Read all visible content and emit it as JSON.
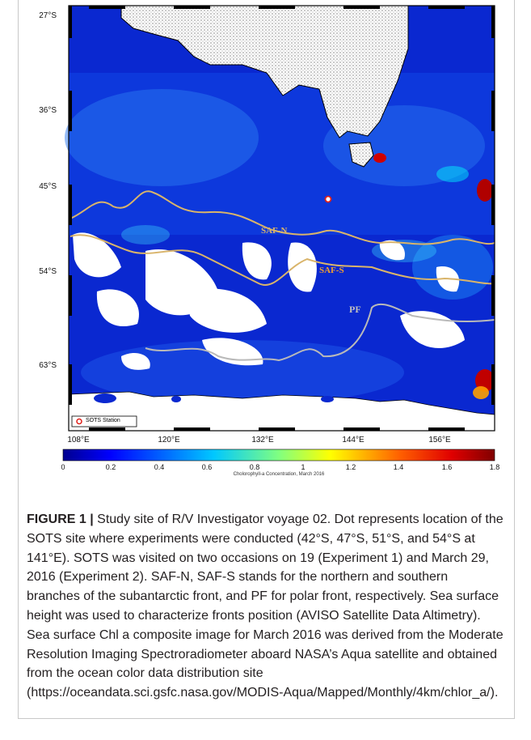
{
  "figure": {
    "lat_labels": [
      "27°S",
      "36°S",
      "45°S",
      "54°S",
      "63°S"
    ],
    "lon_labels": [
      "108°E",
      "120°E",
      "132°E",
      "144°E",
      "156°E"
    ],
    "front_labels": {
      "saf_n": "SAF-N",
      "saf_s": "SAF-S",
      "pf": "PF"
    },
    "legend_label": "SOTS Station",
    "colorbar": {
      "ticks": [
        "0",
        "0.2",
        "0.4",
        "0.6",
        "0.8",
        "1",
        "1.2",
        "1.4",
        "1.6",
        "1.8"
      ],
      "title": "Cholorophyll-a Concentration, March 2016",
      "colors": [
        "#00008f",
        "#0000ff",
        "#0080ff",
        "#00ffff",
        "#80ff80",
        "#ffff00",
        "#ff8000",
        "#ff0000",
        "#800000"
      ]
    },
    "colors": {
      "front_line": "#d9b46a",
      "pf_line": "#b9b9b9",
      "station": "#e0201a"
    }
  },
  "caption": {
    "label": "FIGURE 1 |",
    "text": " Study site of R/V Investigator voyage 02. Dot represents location of the SOTS site where experiments were conducted (42°S, 47°S, 51°S, and 54°S at 141°E). SOTS was visited on two occasions on 19 (Experiment 1) and March 29, 2016 (Experiment 2). SAF-N, SAF-S stands for the northern and southern branches of the subantarctic front, and PF for polar front, respectively. Sea surface height was used to characterize fronts position (AVISO Satellite Data Altimetry). Sea surface Chl a composite image for March 2016 was derived from the Moderate Resolution Imaging Spectroradiometer aboard NASA’s Aqua satellite and obtained from the ocean color data distribution site (https://oceandata.sci.gsfc.nasa.gov/MODIS-Aqua/Mapped/Monthly/4km/chlor_a/)."
  }
}
